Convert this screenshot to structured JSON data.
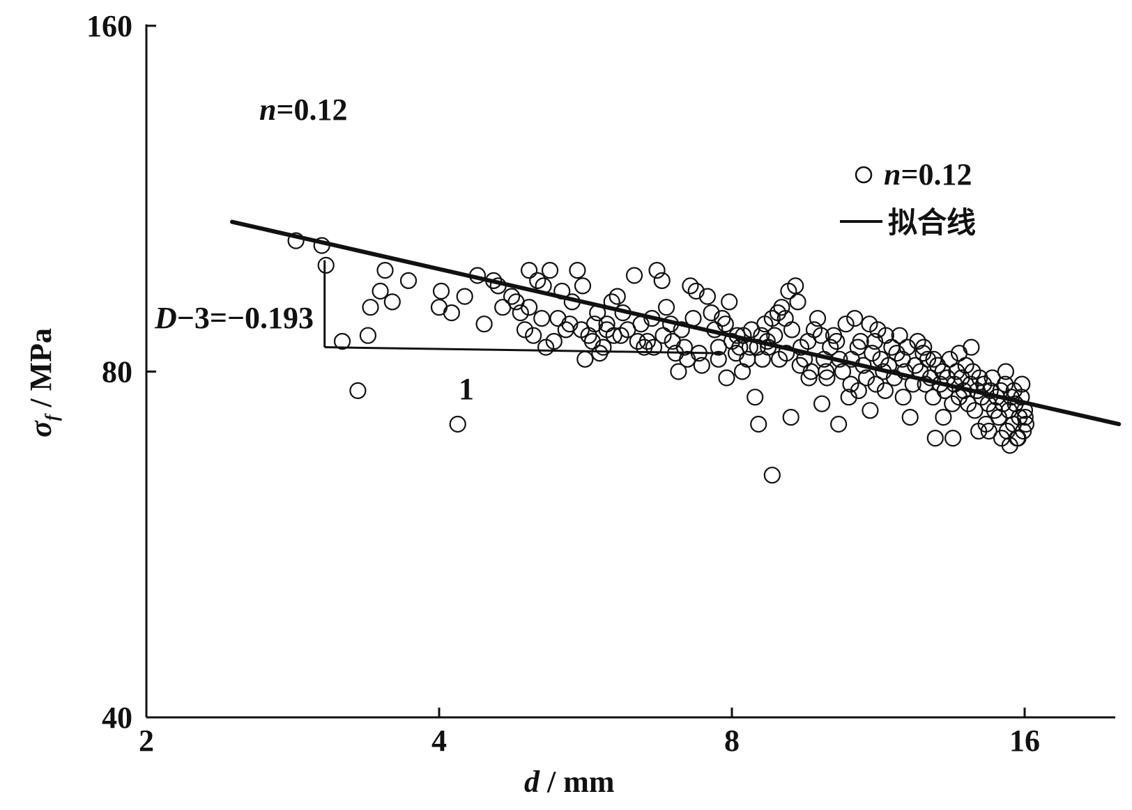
{
  "chart_data": {
    "type": "scatter",
    "xscale": "log",
    "yscale": "log",
    "xlabel_var": "d",
    "xlabel_unit": " / mm",
    "ylabel_var": "σ",
    "ylabel_sub": "f",
    "ylabel_unit": " / MPa",
    "xlim": [
      2,
      21
    ],
    "ylim": [
      40,
      160
    ],
    "x_ticks": [
      2,
      4,
      8,
      16
    ],
    "y_ticks": [
      40,
      80,
      160
    ],
    "annotations": {
      "top_n_var": "n",
      "top_n_value": "=0.12",
      "slope_var": "D",
      "slope_text": "−3=−0.193",
      "run_label": "1"
    },
    "legend": {
      "position": "top-right",
      "marker_label_var": "n",
      "marker_label_value": "=0.12",
      "line_label": "拟合线"
    },
    "fit_line": {
      "points": [
        [
          2.45,
          108
        ],
        [
          20.0,
          72
        ]
      ]
    },
    "slope_triangle": {
      "x1": 3.05,
      "x2": 7.8,
      "y_top": 100,
      "y_bottom": 84
    },
    "series": [
      {
        "marker": "open-circle",
        "points": [
          [
            2.85,
            104
          ],
          [
            3.03,
            103
          ],
          [
            3.06,
            99
          ],
          [
            3.18,
            85
          ],
          [
            3.3,
            77
          ],
          [
            3.4,
            91
          ],
          [
            3.38,
            86
          ],
          [
            3.52,
            98
          ],
          [
            3.48,
            94
          ],
          [
            4.02,
            94
          ],
          [
            4.12,
            90
          ],
          [
            4.18,
            72
          ],
          [
            4.38,
            97
          ],
          [
            4.55,
            96
          ],
          [
            4.75,
            93
          ],
          [
            4.9,
            87
          ],
          [
            4.95,
            98
          ],
          [
            5.05,
            96
          ],
          [
            5.12,
            95
          ],
          [
            5.2,
            98
          ],
          [
            5.35,
            94
          ],
          [
            5.48,
            92
          ],
          [
            5.55,
            98
          ],
          [
            5.62,
            95
          ],
          [
            5.7,
            86
          ],
          [
            5.78,
            88
          ],
          [
            5.85,
            83
          ],
          [
            5.95,
            87
          ],
          [
            6.02,
            92
          ],
          [
            6.1,
            93
          ],
          [
            6.18,
            90
          ],
          [
            6.35,
            97
          ],
          [
            6.5,
            84
          ],
          [
            6.62,
            89
          ],
          [
            6.7,
            98
          ],
          [
            6.78,
            96
          ],
          [
            6.85,
            91
          ],
          [
            6.92,
            88
          ],
          [
            7.0,
            83
          ],
          [
            7.1,
            87
          ],
          [
            7.25,
            95
          ],
          [
            7.3,
            89
          ],
          [
            7.35,
            94
          ],
          [
            7.45,
            81
          ],
          [
            7.55,
            93
          ],
          [
            7.62,
            90
          ],
          [
            7.68,
            87
          ],
          [
            7.75,
            84
          ],
          [
            7.82,
            89
          ],
          [
            7.88,
            88
          ],
          [
            7.95,
            92
          ],
          [
            8.0,
            85
          ],
          [
            8.08,
            83
          ],
          [
            8.15,
            84
          ],
          [
            8.22,
            86
          ],
          [
            8.3,
            82
          ],
          [
            8.38,
            87
          ],
          [
            8.45,
            76
          ],
          [
            8.52,
            72
          ],
          [
            8.58,
            86
          ],
          [
            8.65,
            88
          ],
          [
            8.72,
            84
          ],
          [
            8.8,
            89
          ],
          [
            8.85,
            86
          ],
          [
            8.92,
            90
          ],
          [
            9.0,
            91
          ],
          [
            9.08,
            89
          ],
          [
            9.15,
            94
          ],
          [
            9.22,
            87
          ],
          [
            9.3,
            95
          ],
          [
            9.35,
            92
          ],
          [
            9.42,
            84
          ],
          [
            9.5,
            82
          ],
          [
            9.58,
            85
          ],
          [
            9.65,
            80
          ],
          [
            9.72,
            87
          ],
          [
            9.8,
            89
          ],
          [
            9.88,
            86
          ],
          [
            9.95,
            82
          ],
          [
            10.02,
            79
          ],
          [
            10.1,
            84
          ],
          [
            10.18,
            86
          ],
          [
            10.25,
            85
          ],
          [
            10.32,
            82
          ],
          [
            10.4,
            80
          ],
          [
            10.48,
            88
          ],
          [
            10.55,
            76
          ],
          [
            10.62,
            82
          ],
          [
            10.7,
            89
          ],
          [
            10.78,
            84
          ],
          [
            10.85,
            85
          ],
          [
            10.92,
            81
          ],
          [
            11.0,
            79
          ],
          [
            11.08,
            88
          ],
          [
            11.15,
            83
          ],
          [
            11.22,
            85
          ],
          [
            11.3,
            87
          ],
          [
            11.38,
            82
          ],
          [
            11.45,
            80
          ],
          [
            11.52,
            86
          ],
          [
            11.6,
            81
          ],
          [
            11.68,
            84
          ],
          [
            11.75,
            79
          ],
          [
            11.82,
            83
          ],
          [
            11.9,
            86
          ],
          [
            11.98,
            82
          ],
          [
            12.05,
            80
          ],
          [
            12.12,
            84
          ],
          [
            12.2,
            73
          ],
          [
            12.28,
            78
          ],
          [
            12.35,
            81
          ],
          [
            12.42,
            85
          ],
          [
            12.5,
            80
          ],
          [
            12.58,
            83
          ],
          [
            12.65,
            78
          ],
          [
            12.72,
            82
          ],
          [
            12.8,
            79
          ],
          [
            12.88,
            76
          ],
          [
            12.95,
            70
          ],
          [
            13.02,
            81
          ],
          [
            13.1,
            78
          ],
          [
            13.18,
            80
          ],
          [
            13.25,
            77
          ],
          [
            13.32,
            79
          ],
          [
            13.4,
            82
          ],
          [
            13.48,
            75
          ],
          [
            13.55,
            78
          ],
          [
            13.62,
            80
          ],
          [
            13.7,
            76
          ],
          [
            13.78,
            79
          ],
          [
            13.85,
            77
          ],
          [
            13.92,
            81
          ],
          [
            14.0,
            75
          ],
          [
            14.08,
            78
          ],
          [
            14.15,
            80
          ],
          [
            14.22,
            74
          ],
          [
            14.3,
            77
          ],
          [
            14.38,
            79
          ],
          [
            14.45,
            76
          ],
          [
            14.52,
            78
          ],
          [
            14.6,
            72
          ],
          [
            14.68,
            75
          ],
          [
            14.75,
            77
          ],
          [
            14.82,
            79
          ],
          [
            14.9,
            74
          ],
          [
            14.98,
            76
          ],
          [
            15.05,
            73
          ],
          [
            15.12,
            77
          ],
          [
            15.2,
            75
          ],
          [
            15.28,
            78
          ],
          [
            15.35,
            71
          ],
          [
            15.42,
            74
          ],
          [
            15.5,
            76
          ],
          [
            15.58,
            72
          ],
          [
            15.65,
            75
          ],
          [
            15.72,
            70
          ],
          [
            15.8,
            73
          ],
          [
            15.88,
            76
          ],
          [
            15.95,
            71
          ],
          [
            16.0,
            74
          ],
          [
            16.05,
            72
          ],
          [
            15.3,
            80
          ],
          [
            15.6,
            77
          ],
          [
            15.9,
            78
          ],
          [
            12.6,
            84
          ],
          [
            12.9,
            82
          ],
          [
            13.7,
            83
          ],
          [
            14.1,
            84
          ],
          [
            11.1,
            74
          ],
          [
            10.3,
            72
          ],
          [
            9.9,
            75
          ],
          [
            9.2,
            73
          ],
          [
            8.8,
            65
          ],
          [
            8.6,
            82
          ],
          [
            8.2,
            80
          ],
          [
            7.9,
            79
          ],
          [
            7.2,
            82
          ],
          [
            7.05,
            80
          ],
          [
            6.55,
            85
          ],
          [
            6.45,
            88
          ],
          [
            6.25,
            87
          ],
          [
            6.05,
            86
          ],
          [
            5.9,
            84
          ],
          [
            5.75,
            85
          ],
          [
            5.65,
            82
          ],
          [
            5.45,
            88
          ],
          [
            5.25,
            85
          ],
          [
            5.15,
            84
          ],
          [
            5.0,
            86
          ],
          [
            4.85,
            90
          ],
          [
            4.65,
            91
          ],
          [
            4.45,
            88
          ],
          [
            4.25,
            93
          ],
          [
            4.0,
            91
          ],
          [
            3.72,
            96
          ],
          [
            3.58,
            92
          ],
          [
            13.2,
            73
          ],
          [
            13.5,
            70
          ],
          [
            14.35,
            71
          ],
          [
            14.7,
            71
          ],
          [
            15.15,
            70
          ],
          [
            15.45,
            69
          ],
          [
            15.75,
            70
          ],
          [
            16.02,
            73
          ],
          [
            12.0,
            76
          ],
          [
            11.5,
            77
          ],
          [
            11.25,
            78
          ],
          [
            10.8,
            77
          ],
          [
            10.6,
            78
          ],
          [
            10.0,
            80
          ],
          [
            9.6,
            79
          ],
          [
            9.4,
            81
          ],
          [
            9.1,
            83
          ],
          [
            8.95,
            82
          ],
          [
            8.7,
            85
          ],
          [
            8.5,
            84
          ],
          [
            8.35,
            84
          ],
          [
            8.1,
            86
          ],
          [
            7.75,
            82
          ],
          [
            7.4,
            83
          ],
          [
            7.15,
            84
          ],
          [
            6.95,
            85
          ],
          [
            6.8,
            86
          ],
          [
            6.65,
            84
          ],
          [
            6.4,
            85
          ],
          [
            6.15,
            86
          ],
          [
            5.95,
            88
          ],
          [
            5.82,
            90
          ],
          [
            5.6,
            87
          ],
          [
            5.4,
            87
          ],
          [
            5.3,
            89
          ],
          [
            5.1,
            89
          ],
          [
            4.95,
            91
          ],
          [
            4.8,
            92
          ],
          [
            4.6,
            95
          ]
        ]
      }
    ]
  }
}
